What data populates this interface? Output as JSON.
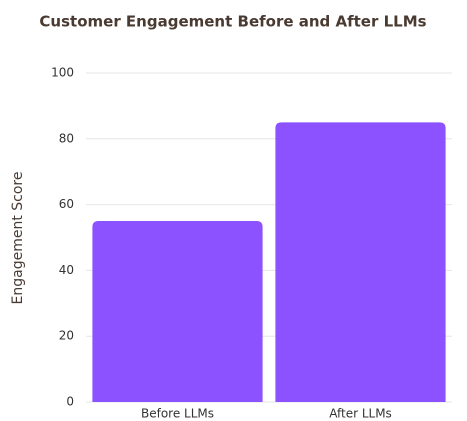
{
  "chart_data": {
    "type": "bar",
    "title": "Customer Engagement Before and After LLMs",
    "y_label": "Engagement Score",
    "categories": [
      "Before LLMs",
      "After LLMs"
    ],
    "values": [
      55,
      85
    ],
    "color": "#8c52ff",
    "ylim": [
      0,
      100
    ],
    "yticks": [
      0,
      20,
      40,
      60,
      80,
      100
    ],
    "grid": true
  }
}
